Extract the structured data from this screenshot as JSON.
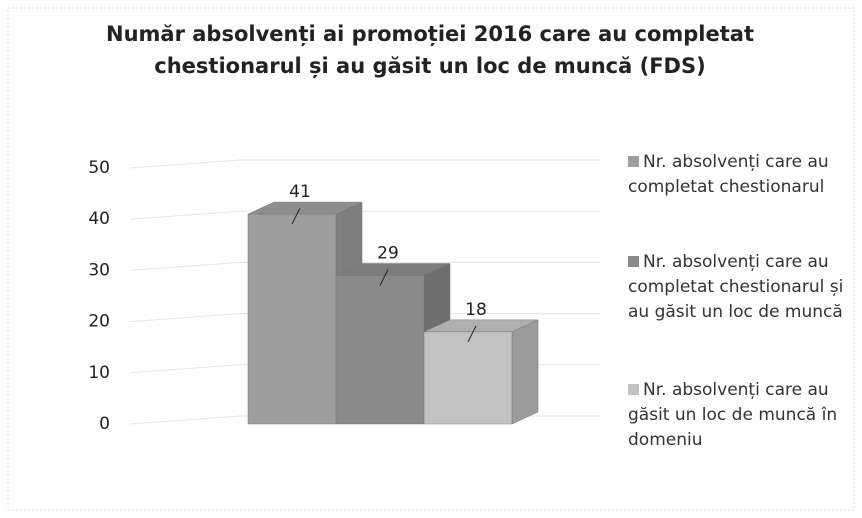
{
  "chart_data": {
    "type": "bar3d",
    "title": "Număr absolvenți ai promoției 2016 care au completat chestionarul și au găsit un loc de muncă (FDS)",
    "series": [
      {
        "name": "Nr. absolvenți care au completat chestionarul",
        "color": "#9e9e9e",
        "values": [
          41
        ]
      },
      {
        "name": "Nr. absolvenți care au completat chestionarul și au găsit un loc de muncă",
        "color": "#8a8a8a",
        "values": [
          29
        ]
      },
      {
        "name": "Nr. absolvenți care au găsit un loc de muncă în domeniu",
        "color": "#c2c2c2",
        "values": [
          18
        ]
      }
    ],
    "ylim": [
      0,
      50
    ],
    "yticks": [
      0,
      10,
      20,
      30,
      40,
      50
    ],
    "grid": true,
    "legend": "right"
  }
}
